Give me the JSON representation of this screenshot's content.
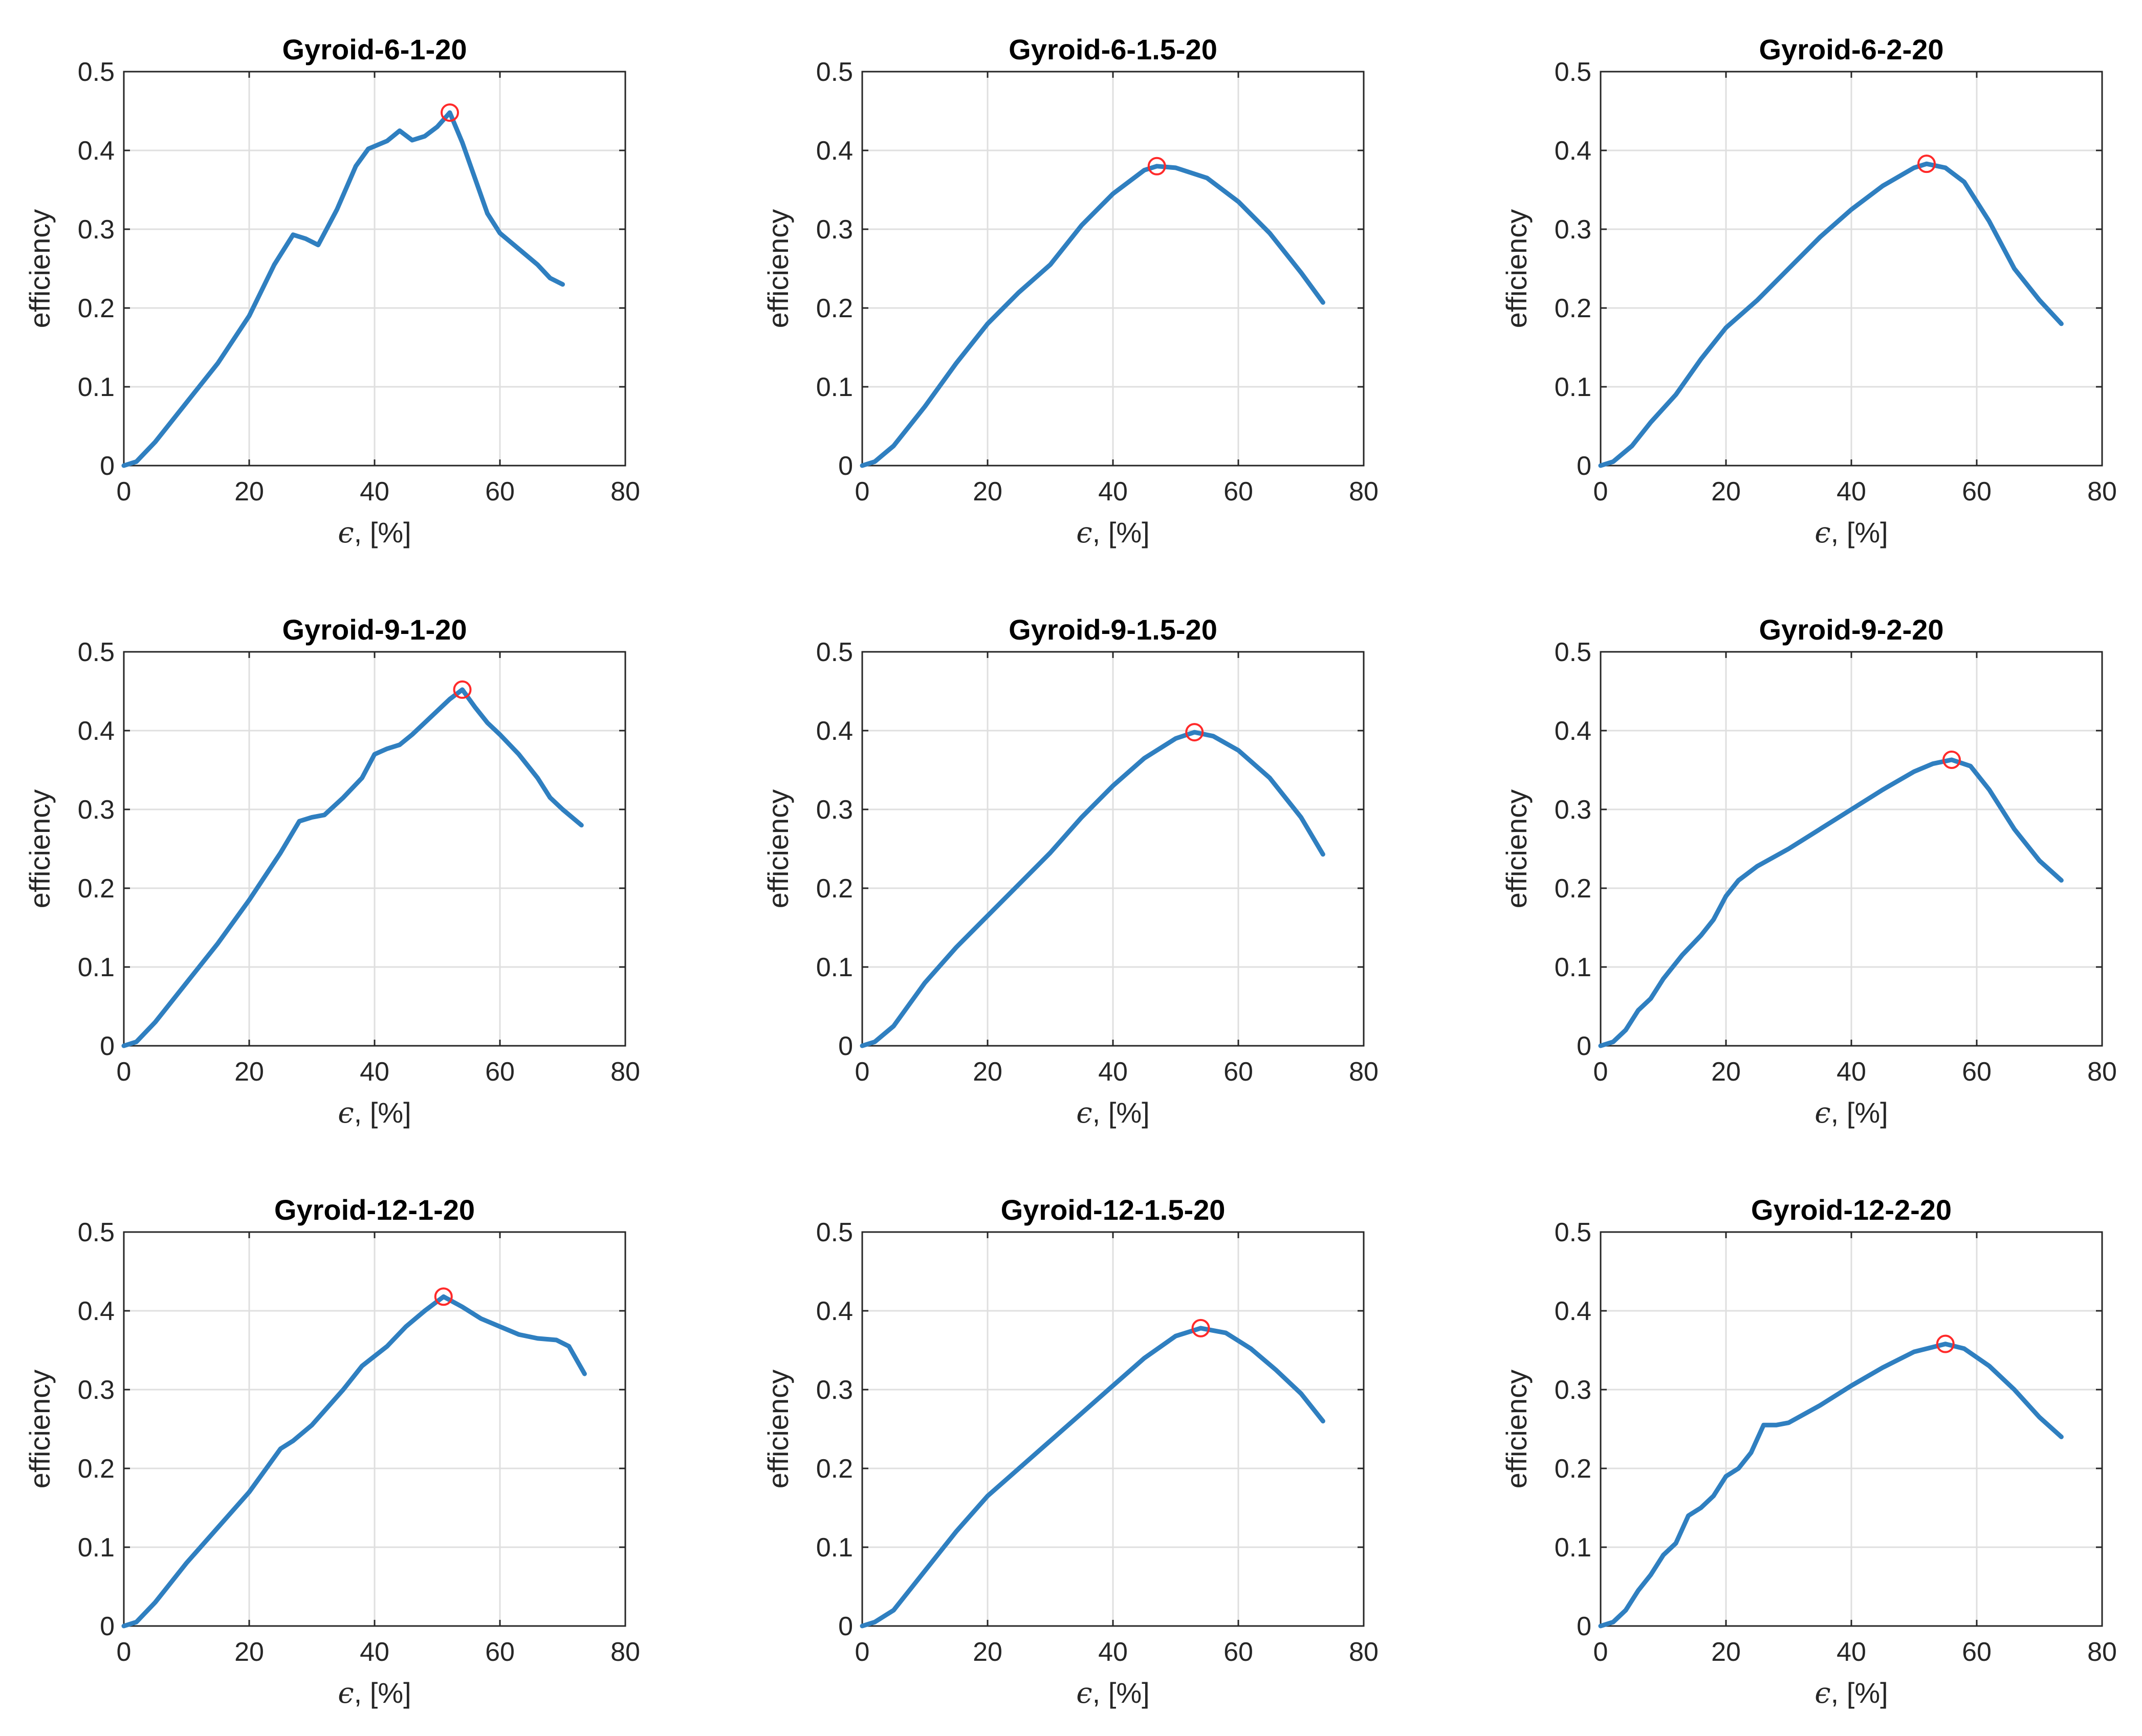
{
  "figure": {
    "xlabel_symbol": "ϵ",
    "xlabel_unit": ", [%]",
    "ylabel": "efficiency",
    "xticks": [
      "0",
      "20",
      "40",
      "60",
      "80"
    ],
    "yticks": [
      "0",
      "0.1",
      "0.2",
      "0.3",
      "0.4",
      "0.5"
    ],
    "colors": {
      "curve": "#2f7fc0",
      "peak_marker": "#ff2a2a",
      "grid": "#dfdfdf",
      "axes": "#262626"
    }
  },
  "chart_data": [
    {
      "type": "line",
      "title": "Gyroid-6-1-20",
      "xlabel": "ϵ, [%]",
      "ylabel": "efficiency",
      "xlim": [
        0,
        80
      ],
      "ylim": [
        0,
        0.5
      ],
      "grid": true,
      "x": [
        0,
        2,
        5,
        10,
        15,
        20,
        24,
        27,
        29,
        31,
        34,
        37,
        39,
        42,
        44,
        46,
        48,
        50,
        52,
        54,
        56,
        58,
        60,
        63,
        66,
        68,
        70
      ],
      "y": [
        0,
        0.005,
        0.03,
        0.08,
        0.13,
        0.19,
        0.255,
        0.293,
        0.288,
        0.28,
        0.325,
        0.38,
        0.402,
        0.412,
        0.425,
        0.413,
        0.418,
        0.43,
        0.448,
        0.41,
        0.365,
        0.32,
        0.295,
        0.275,
        0.255,
        0.238,
        0.23
      ],
      "peak": {
        "x": 52,
        "y": 0.448
      }
    },
    {
      "type": "line",
      "title": "Gyroid-6-1.5-20",
      "xlabel": "ϵ, [%]",
      "ylabel": "efficiency",
      "xlim": [
        0,
        80
      ],
      "ylim": [
        0,
        0.5
      ],
      "grid": true,
      "x": [
        0,
        2,
        5,
        10,
        15,
        20,
        25,
        30,
        35,
        40,
        45,
        47,
        50,
        55,
        60,
        65,
        70,
        73.5
      ],
      "y": [
        0,
        0.005,
        0.025,
        0.075,
        0.13,
        0.18,
        0.22,
        0.255,
        0.305,
        0.345,
        0.375,
        0.38,
        0.378,
        0.365,
        0.335,
        0.295,
        0.245,
        0.207
      ],
      "peak": {
        "x": 47,
        "y": 0.38
      }
    },
    {
      "type": "line",
      "title": "Gyroid-6-2-20",
      "xlabel": "ϵ, [%]",
      "ylabel": "efficiency",
      "xlim": [
        0,
        80
      ],
      "ylim": [
        0,
        0.5
      ],
      "grid": true,
      "x": [
        0,
        2,
        5,
        8,
        12,
        16,
        20,
        25,
        30,
        35,
        40,
        45,
        50,
        52,
        55,
        58,
        62,
        66,
        70,
        73.5
      ],
      "y": [
        0,
        0.005,
        0.025,
        0.055,
        0.09,
        0.135,
        0.175,
        0.21,
        0.25,
        0.29,
        0.325,
        0.355,
        0.378,
        0.383,
        0.378,
        0.36,
        0.31,
        0.25,
        0.21,
        0.18
      ],
      "peak": {
        "x": 52,
        "y": 0.383
      }
    },
    {
      "type": "line",
      "title": "Gyroid-9-1-20",
      "xlabel": "ϵ, [%]",
      "ylabel": "efficiency",
      "xlim": [
        0,
        80
      ],
      "ylim": [
        0,
        0.5
      ],
      "grid": true,
      "x": [
        0,
        2,
        5,
        10,
        15,
        20,
        25,
        28,
        30,
        32,
        35,
        38,
        40,
        42,
        44,
        46,
        48,
        50,
        52,
        54,
        56,
        58,
        60,
        63,
        66,
        68,
        70,
        73
      ],
      "y": [
        0,
        0.005,
        0.03,
        0.08,
        0.13,
        0.185,
        0.245,
        0.285,
        0.29,
        0.293,
        0.315,
        0.34,
        0.37,
        0.377,
        0.382,
        0.395,
        0.41,
        0.425,
        0.44,
        0.452,
        0.43,
        0.41,
        0.395,
        0.37,
        0.34,
        0.315,
        0.3,
        0.28
      ],
      "peak": {
        "x": 54,
        "y": 0.452
      }
    },
    {
      "type": "line",
      "title": "Gyroid-9-1.5-20",
      "xlabel": "ϵ, [%]",
      "ylabel": "efficiency",
      "xlim": [
        0,
        80
      ],
      "ylim": [
        0,
        0.5
      ],
      "grid": true,
      "x": [
        0,
        2,
        5,
        10,
        15,
        20,
        25,
        30,
        35,
        40,
        45,
        50,
        53,
        56,
        60,
        65,
        70,
        73.5
      ],
      "y": [
        0,
        0.005,
        0.025,
        0.08,
        0.125,
        0.165,
        0.205,
        0.245,
        0.29,
        0.33,
        0.365,
        0.39,
        0.398,
        0.393,
        0.375,
        0.34,
        0.29,
        0.243
      ],
      "peak": {
        "x": 53,
        "y": 0.398
      }
    },
    {
      "type": "line",
      "title": "Gyroid-9-2-20",
      "xlabel": "ϵ, [%]",
      "ylabel": "efficiency",
      "xlim": [
        0,
        80
      ],
      "ylim": [
        0,
        0.5
      ],
      "grid": true,
      "x": [
        0,
        2,
        4,
        6,
        8,
        10,
        13,
        16,
        18,
        20,
        22,
        25,
        30,
        35,
        40,
        45,
        50,
        53,
        56,
        59,
        62,
        66,
        70,
        73.5
      ],
      "y": [
        0,
        0.005,
        0.02,
        0.045,
        0.06,
        0.085,
        0.115,
        0.14,
        0.16,
        0.19,
        0.21,
        0.228,
        0.25,
        0.275,
        0.3,
        0.325,
        0.348,
        0.358,
        0.363,
        0.355,
        0.325,
        0.275,
        0.235,
        0.21
      ],
      "peak": {
        "x": 56,
        "y": 0.363
      }
    },
    {
      "type": "line",
      "title": "Gyroid-12-1-20",
      "xlabel": "ϵ, [%]",
      "ylabel": "efficiency",
      "xlim": [
        0,
        80
      ],
      "ylim": [
        0,
        0.5
      ],
      "grid": true,
      "x": [
        0,
        2,
        5,
        10,
        15,
        20,
        25,
        27,
        30,
        35,
        38,
        42,
        45,
        48,
        51,
        54,
        57,
        60,
        63,
        66,
        69,
        71,
        73.5
      ],
      "y": [
        0,
        0.005,
        0.03,
        0.08,
        0.125,
        0.17,
        0.225,
        0.235,
        0.255,
        0.3,
        0.33,
        0.355,
        0.38,
        0.4,
        0.418,
        0.405,
        0.39,
        0.38,
        0.37,
        0.365,
        0.363,
        0.355,
        0.32
      ],
      "peak": {
        "x": 51,
        "y": 0.418
      }
    },
    {
      "type": "line",
      "title": "Gyroid-12-1.5-20",
      "xlabel": "ϵ, [%]",
      "ylabel": "efficiency",
      "xlim": [
        0,
        80
      ],
      "ylim": [
        0,
        0.5
      ],
      "grid": true,
      "x": [
        0,
        2,
        5,
        10,
        15,
        20,
        25,
        30,
        35,
        40,
        45,
        50,
        54,
        58,
        62,
        66,
        70,
        73.5
      ],
      "y": [
        0,
        0.005,
        0.02,
        0.07,
        0.12,
        0.165,
        0.2,
        0.235,
        0.27,
        0.305,
        0.34,
        0.368,
        0.378,
        0.372,
        0.352,
        0.325,
        0.295,
        0.26
      ],
      "peak": {
        "x": 54,
        "y": 0.378
      }
    },
    {
      "type": "line",
      "title": "Gyroid-12-2-20",
      "xlabel": "ϵ, [%]",
      "ylabel": "efficiency",
      "xlim": [
        0,
        80
      ],
      "ylim": [
        0,
        0.5
      ],
      "grid": true,
      "x": [
        0,
        2,
        4,
        6,
        8,
        10,
        12,
        14,
        16,
        18,
        20,
        22,
        24,
        26,
        28,
        30,
        35,
        40,
        45,
        50,
        55,
        58,
        62,
        66,
        70,
        73.5
      ],
      "y": [
        0,
        0.005,
        0.02,
        0.045,
        0.065,
        0.09,
        0.105,
        0.14,
        0.15,
        0.165,
        0.19,
        0.2,
        0.22,
        0.255,
        0.255,
        0.258,
        0.28,
        0.305,
        0.328,
        0.348,
        0.358,
        0.352,
        0.33,
        0.3,
        0.265,
        0.24
      ],
      "peak": {
        "x": 55,
        "y": 0.358
      }
    }
  ]
}
